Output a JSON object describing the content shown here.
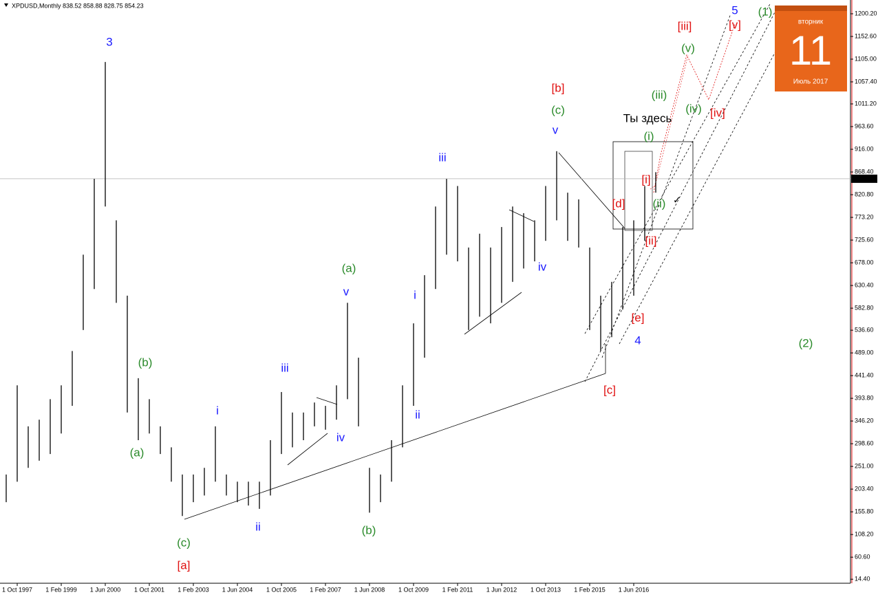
{
  "chart_data": {
    "type": "ohlc",
    "header": "XPDUSD,Monthly  838.52 858.88 828.75 854.23",
    "categories": [
      null,
      "1 Oct 1997",
      null,
      null,
      null,
      "1 Feb 1999",
      null,
      null,
      null,
      "1 Jun 2000",
      null,
      null,
      null,
      "1 Oct 2001",
      null,
      null,
      null,
      "1 Feb 2003",
      null,
      null,
      null,
      "1 Jun 2004",
      null,
      null,
      null,
      "1 Oct 2005",
      null,
      null,
      null,
      "1 Feb 2007",
      null,
      null,
      null,
      "1 Jun 2008",
      null,
      null,
      null,
      "1 Oct 2009",
      null,
      null,
      null,
      "1 Feb 2011",
      null,
      null,
      null,
      "1 Jun 2012",
      null,
      null,
      null,
      "1 Oct 2013",
      null,
      null,
      null,
      "1 Feb 2015",
      null,
      null,
      null,
      "1 Jun 2016",
      null,
      null
    ],
    "high": [
      234,
      421,
      335,
      349,
      392,
      421,
      493,
      695,
      854,
      1099,
      767,
      609,
      436,
      392,
      335,
      291,
      234,
      234,
      248,
      335,
      234,
      219,
      219,
      219,
      306,
      407,
      364,
      364,
      385,
      378,
      421,
      594,
      479,
      248,
      234,
      306,
      421,
      551,
      652,
      796,
      854,
      839,
      710,
      739,
      710,
      753,
      796,
      782,
      767,
      839,
      912,
      825,
      811,
      710,
      609,
      638,
      753,
      767,
      839,
      868
    ],
    "low": [
      176,
      219,
      248,
      263,
      277,
      320,
      378,
      537,
      623,
      796,
      594,
      364,
      306,
      320,
      277,
      219,
      147,
      176,
      190,
      219,
      190,
      176,
      169,
      162,
      190,
      277,
      291,
      306,
      335,
      328,
      349,
      392,
      335,
      154,
      176,
      219,
      291,
      378,
      479,
      623,
      695,
      681,
      537,
      565,
      551,
      594,
      638,
      666,
      681,
      724,
      767,
      724,
      710,
      537,
      493,
      522,
      580,
      609,
      724,
      825
    ],
    "color": "#000000",
    "ylim": [
      6,
      1229.05
    ],
    "yticks": [
      {
        "value": 1200.2,
        "label": "1200.20"
      },
      {
        "value": 1152.6,
        "label": "1152.60"
      },
      {
        "value": 1105.0,
        "label": "1105.00"
      },
      {
        "value": 1057.4,
        "label": "1057.40"
      },
      {
        "value": 1011.2,
        "label": "1011.20"
      },
      {
        "value": 963.6,
        "label": "963.60"
      },
      {
        "value": 916.0,
        "label": "916.00"
      },
      {
        "value": 868.4,
        "label": "868.40"
      },
      {
        "value": 820.8,
        "label": "820.80"
      },
      {
        "value": 773.2,
        "label": "773.20"
      },
      {
        "value": 725.6,
        "label": "725.60"
      },
      {
        "value": 678.0,
        "label": "678.00"
      },
      {
        "value": 630.4,
        "label": "630.40"
      },
      {
        "value": 582.8,
        "label": "582.80"
      },
      {
        "value": 536.6,
        "label": "536.60"
      },
      {
        "value": 489.0,
        "label": "489.00"
      },
      {
        "value": 441.4,
        "label": "441.40"
      },
      {
        "value": 393.8,
        "label": "393.80"
      },
      {
        "value": 346.2,
        "label": "346.20"
      },
      {
        "value": 298.6,
        "label": "298.60"
      },
      {
        "value": 251.0,
        "label": "251.00"
      },
      {
        "value": 203.4,
        "label": "203.40"
      },
      {
        "value": 155.8,
        "label": "155.80"
      },
      {
        "value": 108.2,
        "label": "108.20"
      },
      {
        "value": 60.6,
        "label": "60.60"
      },
      {
        "value": 14.4,
        "label": "14.40"
      }
    ],
    "current_price": 854.23,
    "wave_labels": [
      {
        "text": "3",
        "color": "#1a1aff"
      },
      {
        "text": "(b)",
        "color": "#2a8a2a"
      },
      {
        "text": "(a)",
        "color": "#2a8a2a"
      },
      {
        "text": "(c)",
        "color": "#2a8a2a"
      },
      {
        "text": "[a]",
        "color": "#e01010"
      },
      {
        "text": "i",
        "color": "#1a1aff"
      },
      {
        "text": "ii",
        "color": "#1a1aff"
      },
      {
        "text": "iii",
        "color": "#1a1aff"
      },
      {
        "text": "iv",
        "color": "#1a1aff"
      },
      {
        "text": "(a)",
        "color": "#2a8a2a"
      },
      {
        "text": "v",
        "color": "#1a1aff"
      },
      {
        "text": "(b)",
        "color": "#2a8a2a"
      },
      {
        "text": "i",
        "color": "#1a1aff"
      },
      {
        "text": "ii",
        "color": "#1a1aff"
      },
      {
        "text": "iii",
        "color": "#1a1aff"
      },
      {
        "text": "iv",
        "color": "#1a1aff"
      },
      {
        "text": "v",
        "color": "#1a1aff"
      },
      {
        "text": "(c)",
        "color": "#2a8a2a"
      },
      {
        "text": "[b]",
        "color": "#e01010"
      },
      {
        "text": "Ты здесь",
        "color": "#000000"
      },
      {
        "text": "(i)",
        "color": "#2a8a2a"
      },
      {
        "text": "(iii)",
        "color": "#2a8a2a"
      },
      {
        "text": "(v)",
        "color": "#2a8a2a"
      },
      {
        "text": "(iv)",
        "color": "#2a8a2a"
      },
      {
        "text": "[i]",
        "color": "#e01010"
      },
      {
        "text": "[d]",
        "color": "#e01010"
      },
      {
        "text": "(ii)",
        "color": "#2a8a2a"
      },
      {
        "text": "[ii]",
        "color": "#e01010"
      },
      {
        "text": "[e]",
        "color": "#e01010"
      },
      {
        "text": "4",
        "color": "#1a1aff"
      },
      {
        "text": "[c]",
        "color": "#e01010"
      },
      {
        "text": "[iii]",
        "color": "#e01010"
      },
      {
        "text": "[v]",
        "color": "#e01010"
      },
      {
        "text": "5",
        "color": "#1a1aff"
      },
      {
        "text": "(1)",
        "color": "#2a8a2a"
      },
      {
        "text": "[iv]",
        "color": "#e01010"
      },
      {
        "text": "(2)",
        "color": "#2a8a2a"
      }
    ],
    "calendar": {
      "weekday": "вторник",
      "day": "11",
      "month": "Июль 2017"
    }
  }
}
